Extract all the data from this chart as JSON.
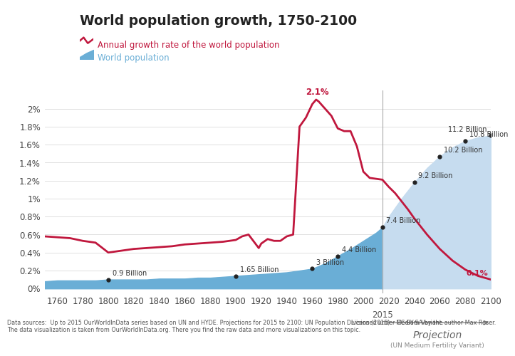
{
  "title": "World population growth, 1750-2100",
  "legend_line": "Annual growth rate of the world population",
  "legend_area": "World population",
  "line_color": "#C0173D",
  "area_color_historical": "#6aaed6",
  "area_color_projection": "#c6dcef",
  "projection_year": 2015,
  "xlim": [
    1750,
    2100
  ],
  "ylim": [
    -0.0005,
    0.022
  ],
  "yticks": [
    0.0,
    0.002,
    0.004,
    0.006,
    0.008,
    0.01,
    0.012,
    0.014,
    0.016,
    0.018,
    0.02
  ],
  "ytick_labels": [
    "0%",
    "0.2%",
    "0.4%",
    "0.6%",
    "0.8%",
    "1%",
    "1.2%",
    "1.4%",
    "1.6%",
    "1.8%",
    "2%"
  ],
  "xticks": [
    1760,
    1780,
    1800,
    1820,
    1840,
    1860,
    1880,
    1900,
    1920,
    1940,
    1960,
    1980,
    2000,
    2020,
    2040,
    2060,
    2080,
    2100
  ],
  "growth_rate_years": [
    1750,
    1760,
    1770,
    1780,
    1790,
    1800,
    1810,
    1820,
    1830,
    1840,
    1850,
    1860,
    1870,
    1880,
    1890,
    1900,
    1905,
    1910,
    1918,
    1920,
    1925,
    1930,
    1935,
    1940,
    1945,
    1950,
    1955,
    1960,
    1963,
    1965,
    1970,
    1975,
    1980,
    1985,
    1990,
    1995,
    2000,
    2005,
    2010,
    2015,
    2020,
    2025,
    2030,
    2035,
    2040,
    2045,
    2050,
    2060,
    2070,
    2080,
    2090,
    2100
  ],
  "growth_rate_values": [
    0.0058,
    0.0057,
    0.0056,
    0.0053,
    0.0051,
    0.004,
    0.0042,
    0.0044,
    0.0045,
    0.0046,
    0.0047,
    0.0049,
    0.005,
    0.0051,
    0.0052,
    0.0054,
    0.0058,
    0.006,
    0.0045,
    0.005,
    0.0055,
    0.0053,
    0.0053,
    0.0058,
    0.006,
    0.018,
    0.019,
    0.0205,
    0.021,
    0.0208,
    0.02,
    0.0192,
    0.0178,
    0.0175,
    0.0175,
    0.0158,
    0.013,
    0.0123,
    0.0122,
    0.0121,
    0.0113,
    0.0106,
    0.0097,
    0.0088,
    0.0078,
    0.0069,
    0.006,
    0.0044,
    0.0031,
    0.0021,
    0.0014,
    0.001
  ],
  "pop_years": [
    1750,
    1760,
    1770,
    1780,
    1790,
    1800,
    1810,
    1820,
    1830,
    1840,
    1850,
    1860,
    1870,
    1880,
    1890,
    1900,
    1910,
    1920,
    1930,
    1940,
    1950,
    1960,
    1970,
    1980,
    1990,
    2000,
    2010,
    2015,
    2020,
    2030,
    2040,
    2050,
    2060,
    2070,
    2080,
    2090,
    2100
  ],
  "pop_values_scaled": [
    0.0008,
    0.0009,
    0.0009,
    0.0009,
    0.0009,
    0.001,
    0.001,
    0.001,
    0.001,
    0.0011,
    0.0011,
    0.0011,
    0.0012,
    0.0012,
    0.0013,
    0.0014,
    0.0015,
    0.0016,
    0.0017,
    0.0018,
    0.002,
    0.0022,
    0.0028,
    0.0036,
    0.0044,
    0.0053,
    0.0062,
    0.0068,
    0.008,
    0.01,
    0.0118,
    0.0134,
    0.0147,
    0.0157,
    0.0164,
    0.0168,
    0.017
  ],
  "dot_labels": {
    "1800": "0.9 Billion",
    "1900": "1.65 Billion",
    "1960": "3 Billion",
    "1980": "4.4 Billion",
    "2015": "7.4 Billion",
    "2040": "9.2 Billion",
    "2060": "10.2 Billion",
    "2080": "10.8 Billion",
    "2100": "11.2 Billion"
  },
  "peak_annotation": {
    "year": 1963,
    "value": 0.021,
    "label": "2.1%"
  },
  "end_annotation": {
    "year": 2100,
    "value": 0.001,
    "label": "0.1%"
  },
  "footer_left": "Data sources:  Up to 2015 OurWorldInData series based on UN and HYDE. Projections for 2015 to 2100: UN Population Division (2015) – Medium Variant.\nThe data visualization is taken from OurWorldInData.org. There you find the raw data and more visualizations on this topic.",
  "footer_right": "Licensed under CC-BY-SA by the author Max Roser.",
  "background_color": "#ffffff",
  "logo_color_top": "#CC0000",
  "logo_color_bottom": "#003366"
}
